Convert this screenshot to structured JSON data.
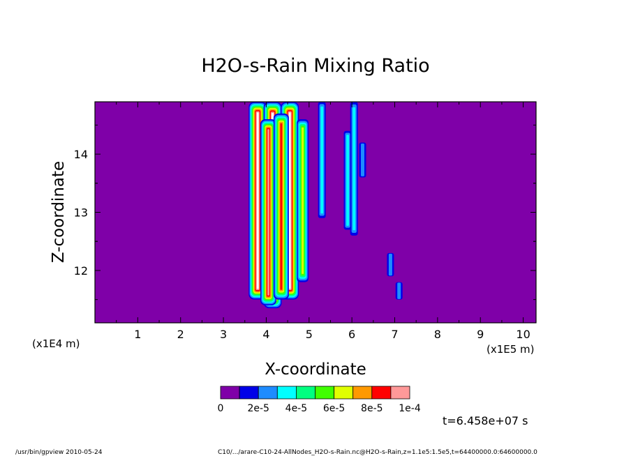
{
  "chart_data": {
    "type": "heatmap",
    "title": "H2O-s-Rain Mixing Ratio",
    "xlabel": "X-coordinate",
    "ylabel": "Z-coordinate",
    "x_scale_note": "(x1E5 m)",
    "y_scale_note": "(x1E4 m)",
    "xlim": [
      0,
      10.3
    ],
    "ylim": [
      11.1,
      14.9
    ],
    "x_ticks": [
      "1",
      "2",
      "3",
      "4",
      "5",
      "6",
      "7",
      "8",
      "9",
      "10"
    ],
    "y_ticks": [
      "12",
      "13",
      "14"
    ],
    "colorbar": {
      "colors": [
        "#7f00a8",
        "#0000e8",
        "#1e8cff",
        "#00ffff",
        "#00ff80",
        "#40ff00",
        "#e0ff00",
        "#ff9900",
        "#ff0000",
        "#ff9999"
      ],
      "labels": [
        "0",
        "2e-5",
        "4e-5",
        "6e-5",
        "8e-5",
        "1e-4"
      ]
    },
    "background_color": "#7f00a8",
    "features": [
      {
        "x": 3.8,
        "z0": 11.5,
        "z1": 14.9,
        "peak": 1.0
      },
      {
        "x": 4.15,
        "z0": 11.35,
        "z1": 14.9,
        "peak": 1.0
      },
      {
        "x": 4.55,
        "z0": 11.5,
        "z1": 14.9,
        "peak": 1.0
      },
      {
        "x": 4.05,
        "z0": 11.4,
        "z1": 14.6,
        "peak": 0.85
      },
      {
        "x": 4.35,
        "z0": 11.5,
        "z1": 14.7,
        "peak": 0.8
      },
      {
        "x": 4.85,
        "z0": 11.8,
        "z1": 14.6,
        "peak": 0.55
      },
      {
        "x": 5.3,
        "z0": 12.9,
        "z1": 14.9,
        "peak": 0.25
      },
      {
        "x": 5.9,
        "z0": 12.7,
        "z1": 14.4,
        "peak": 0.25
      },
      {
        "x": 6.05,
        "z0": 12.6,
        "z1": 14.9,
        "peak": 0.25
      },
      {
        "x": 6.25,
        "z0": 13.6,
        "z1": 14.2,
        "peak": 0.2
      },
      {
        "x": 6.9,
        "z0": 11.9,
        "z1": 12.3,
        "peak": 0.2
      },
      {
        "x": 7.1,
        "z0": 11.5,
        "z1": 11.8,
        "peak": 0.2
      }
    ]
  },
  "time_label": "t=6.458e+07 s",
  "footer": {
    "left": "/usr/bin/gpview  2010-05-24",
    "right": "C10/.../arare-C10-24-AllNodes_H2O-s-Rain.nc@H2O-s-Rain,z=1.1e5:1.5e5,t=64400000.0:64600000.0"
  }
}
